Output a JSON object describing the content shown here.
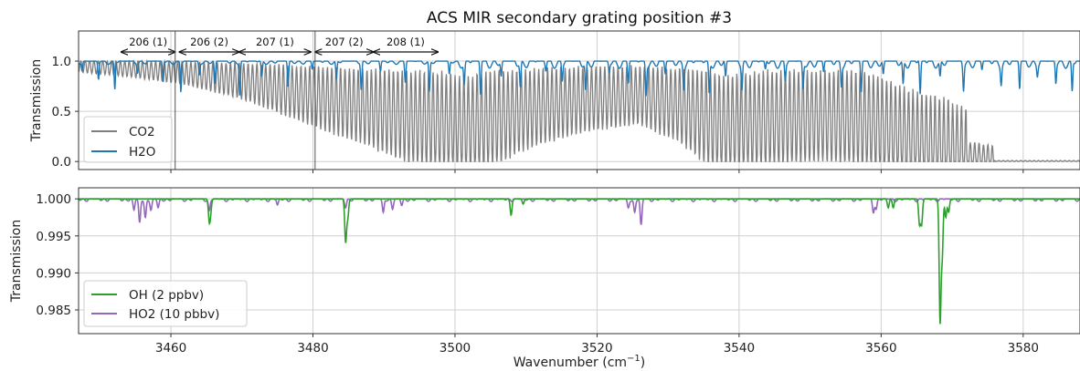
{
  "title": "ACS MIR secondary grating position #3",
  "colors": {
    "CO2": "#7f7f7f",
    "H2O": "#1f77b4",
    "OH": "#2ca02c",
    "HO2": "#9467bd"
  },
  "chart_data": [
    {
      "type": "line",
      "panel": "top",
      "ylabel": "Transmission",
      "xlabel": "",
      "xlim": [
        3447,
        3588
      ],
      "ylim": [
        -0.08,
        1.3
      ],
      "yticks": [
        0.0,
        0.5,
        1.0
      ],
      "ytick_labels": [
        "0.0",
        "0.5",
        "1.0"
      ],
      "xticks": [
        3460,
        3480,
        3500,
        3520,
        3540,
        3560,
        3580
      ],
      "grid": true,
      "legend_placement": "lower-left",
      "series": [
        {
          "name": "CO2",
          "baseline": [
            [
              3447,
              0.95
            ],
            [
              3455,
              0.92
            ],
            [
              3462,
              0.88
            ],
            [
              3470,
              0.8
            ],
            [
              3480,
              0.65
            ],
            [
              3487,
              0.55
            ],
            [
              3495,
              0.42
            ],
            [
              3502,
              0.35
            ],
            [
              3510,
              0.52
            ],
            [
              3518,
              0.62
            ],
            [
              3526,
              0.66
            ],
            [
              3532,
              0.55
            ],
            [
              3538,
              0.35
            ],
            [
              3545,
              0.42
            ],
            [
              3552,
              0.45
            ],
            [
              3558,
              0.4
            ],
            [
              3564,
              0.22
            ],
            [
              3568,
              0.15
            ],
            [
              3572,
              0.05
            ],
            [
              3576,
              0.01
            ],
            [
              3580,
              0.0
            ],
            [
              3588,
              0.0
            ]
          ],
          "line_spacing": 0.62,
          "note": "dense absorption line forest; deepest near 3500-3560"
        },
        {
          "name": "H2O",
          "baseline": 1.0,
          "line_centers": [
            3447.5,
            3449.8,
            3452.1,
            3455.3,
            3458.9,
            3461.4,
            3464.0,
            3466.2,
            3469.7,
            3472.8,
            3476.5,
            3479.9,
            3483.3,
            3486.8,
            3489.5,
            3493.0,
            3496.4,
            3499.2,
            3501.3,
            3503.6,
            3506.5,
            3509.2,
            3512.8,
            3515.1,
            3518.4,
            3521.7,
            3524.4,
            3526.9,
            3529.6,
            3532.2,
            3535.8,
            3538.1,
            3540.4,
            3543.7,
            3546.5,
            3549.0,
            3551.9,
            3554.4,
            3557.2,
            3560.3,
            3563.1,
            3565.5,
            3568.3,
            3571.6,
            3574.2,
            3576.9,
            3579.5,
            3582.0,
            3584.6,
            3586.9
          ]
        }
      ]
    },
    {
      "type": "line",
      "panel": "bottom",
      "ylabel": "Transmission",
      "xlabel": "Wavenumber (cm",
      "xlabel_sup": "−1",
      "xlabel_end": ")",
      "xlim": [
        3447,
        3588
      ],
      "ylim": [
        0.9818,
        1.0015
      ],
      "yticks": [
        0.985,
        0.99,
        0.995,
        1.0
      ],
      "ytick_labels": [
        "0.985",
        "0.990",
        "0.995",
        "1.000"
      ],
      "xticks": [
        3460,
        3480,
        3500,
        3520,
        3540,
        3560,
        3580
      ],
      "xtick_labels": [
        "3460",
        "3480",
        "3500",
        "3520",
        "3540",
        "3560",
        "3580"
      ],
      "grid": true,
      "legend_placement": "lower-left",
      "series": [
        {
          "name": "OH (2 ppbv)",
          "baseline": 1.0,
          "lines": [
            [
              3465.4,
              0.9972
            ],
            [
              3465.6,
              0.9985
            ],
            [
              3484.6,
              0.9942
            ],
            [
              3484.9,
              0.9975
            ],
            [
              3507.9,
              0.9978
            ],
            [
              3509.6,
              0.9993
            ],
            [
              3561.0,
              0.9988
            ],
            [
              3561.7,
              0.9988
            ],
            [
              3565.4,
              0.9966
            ],
            [
              3565.7,
              0.9966
            ],
            [
              3568.3,
              0.9836
            ],
            [
              3568.6,
              0.9925
            ],
            [
              3569.1,
              0.9975
            ],
            [
              3569.5,
              0.9982
            ]
          ]
        },
        {
          "name": "HO2 (10 pbbv)",
          "baseline": 1.0,
          "lines": [
            [
              3455.6,
              0.9968
            ],
            [
              3456.4,
              0.9975
            ],
            [
              3457.2,
              0.9985
            ],
            [
              3454.8,
              0.9985
            ],
            [
              3458.2,
              0.9988
            ],
            [
              3465.4,
              0.9984
            ],
            [
              3475.0,
              0.9992
            ],
            [
              3484.6,
              0.999
            ],
            [
              3489.9,
              0.9982
            ],
            [
              3491.2,
              0.9988
            ],
            [
              3492.5,
              0.9991
            ],
            [
              3526.2,
              0.9965
            ],
            [
              3525.3,
              0.9982
            ],
            [
              3524.4,
              0.9988
            ],
            [
              3558.9,
              0.9983
            ],
            [
              3559.3,
              0.9988
            ]
          ]
        }
      ]
    }
  ],
  "grating_positions": [
    {
      "label": "206 (1)",
      "from": 3453.0,
      "to": 3460.6
    },
    {
      "label": "206 (2)",
      "from": 3461.2,
      "to": 3469.6
    },
    {
      "label": "207 (1)",
      "from": 3469.6,
      "to": 3479.7
    },
    {
      "label": "207 (2)",
      "from": 3480.3,
      "to": 3488.5
    },
    {
      "label": "208 (1)",
      "from": 3488.5,
      "to": 3497.6
    }
  ]
}
